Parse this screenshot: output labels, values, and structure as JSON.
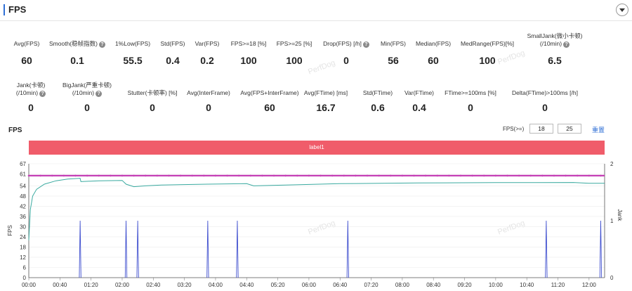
{
  "panel": {
    "title": "FPS"
  },
  "icons": {
    "collapse": "chevron-down-icon",
    "help": "question-circle-icon"
  },
  "watermark": "PerfDog",
  "metrics_row1": [
    {
      "label": "Avg(FPS)",
      "value": "60",
      "help": false
    },
    {
      "label": "Smooth(稳帧指数)",
      "value": "0.1",
      "help": true
    },
    {
      "label": "1%Low(FPS)",
      "value": "55.5",
      "help": false
    },
    {
      "label": "Std(FPS)",
      "value": "0.4",
      "help": false
    },
    {
      "label": "Var(FPS)",
      "value": "0.2",
      "help": false
    },
    {
      "label": "FPS>=18 [%]",
      "value": "100",
      "help": false
    },
    {
      "label": "FPS>=25 [%]",
      "value": "100",
      "help": false
    },
    {
      "label": "Drop(FPS) [/h]",
      "value": "0",
      "help": true
    },
    {
      "label": "Min(FPS)",
      "value": "56",
      "help": false
    },
    {
      "label": "Median(FPS)",
      "value": "60",
      "help": false
    },
    {
      "label": "MedRange(FPS)[%]",
      "value": "100",
      "help": false
    },
    {
      "label": "SmallJank(微小卡顿)",
      "label2": "(/10min)",
      "value": "6.5",
      "help": true
    }
  ],
  "metrics_row2": [
    {
      "label": "Jank(卡顿)",
      "label2": "(/10min)",
      "value": "0",
      "help": true
    },
    {
      "label": "BigJank(严重卡顿)",
      "label2": "(/10min)",
      "value": "0",
      "help": true
    },
    {
      "label": "Stutter(卡顿率) [%]",
      "value": "0",
      "help": false
    },
    {
      "label": "Avg(InterFrame)",
      "value": "0",
      "help": false
    },
    {
      "label": "Avg(FPS+InterFrame)",
      "value": "60",
      "help": false
    },
    {
      "label": "Avg(FTime) [ms]",
      "value": "16.7",
      "help": false
    },
    {
      "label": "Std(FTime)",
      "value": "0.6",
      "help": false
    },
    {
      "label": "Var(FTime)",
      "value": "0.4",
      "help": false
    },
    {
      "label": "FTime>=100ms [%]",
      "value": "0",
      "help": false
    },
    {
      "label": "Delta(FTime)>100ms [/h]",
      "value": "0",
      "help": false
    }
  ],
  "chart_header": {
    "title": "FPS",
    "threshold_label": "FPS(>=)",
    "threshold_values": [
      "18",
      "25"
    ],
    "reset_label": "重置"
  },
  "label_band": {
    "text": "label1"
  },
  "chart_data": {
    "type": "line",
    "x_ticks": [
      "00:00",
      "00:40",
      "01:20",
      "02:00",
      "02:40",
      "03:20",
      "04:00",
      "04:40",
      "05:20",
      "06:00",
      "06:40",
      "07:20",
      "08:00",
      "08:40",
      "09:20",
      "10:00",
      "10:40",
      "11:20",
      "12:00"
    ],
    "xlim_seconds": [
      0,
      740
    ],
    "y_left": {
      "label": "FPS",
      "ticks": [
        "0",
        "6",
        "12",
        "18",
        "24",
        "30",
        "36",
        "42",
        "48",
        "54",
        "61",
        "67"
      ],
      "ylim": [
        0,
        67
      ]
    },
    "y_right": {
      "label": "Jank",
      "ticks": [
        "0",
        "1",
        "2"
      ],
      "ylim": [
        0,
        2
      ]
    },
    "series": [
      {
        "name": "FPS",
        "color": "#c43fb5",
        "x": [
          0,
          5,
          10,
          20,
          60,
          120,
          200,
          300,
          400,
          500,
          600,
          700,
          740
        ],
        "y": [
          60,
          60,
          60,
          60,
          60,
          60,
          60,
          60,
          60,
          60,
          60,
          60,
          60
        ]
      },
      {
        "color": "#3aaaa0",
        "x": [
          0,
          2,
          5,
          10,
          20,
          35,
          50,
          66,
          67,
          90,
          120,
          125,
          135,
          150,
          170,
          230,
          280,
          289,
          330,
          400,
          500,
          600,
          700,
          720,
          740
        ],
        "y": [
          22,
          40,
          48,
          52,
          55,
          57,
          58,
          58.5,
          56.5,
          57,
          57.2,
          55,
          53.5,
          54,
          54.5,
          55,
          55.3,
          54,
          54.5,
          55.3,
          55.7,
          55.9,
          56,
          55.5,
          55.5
        ]
      },
      {
        "color": "#3f4fcf",
        "x": [
          66,
          125,
          140,
          230,
          268,
          410,
          665,
          735
        ],
        "y": [
          1,
          1,
          1,
          1,
          1,
          1,
          1,
          1
        ]
      }
    ]
  }
}
